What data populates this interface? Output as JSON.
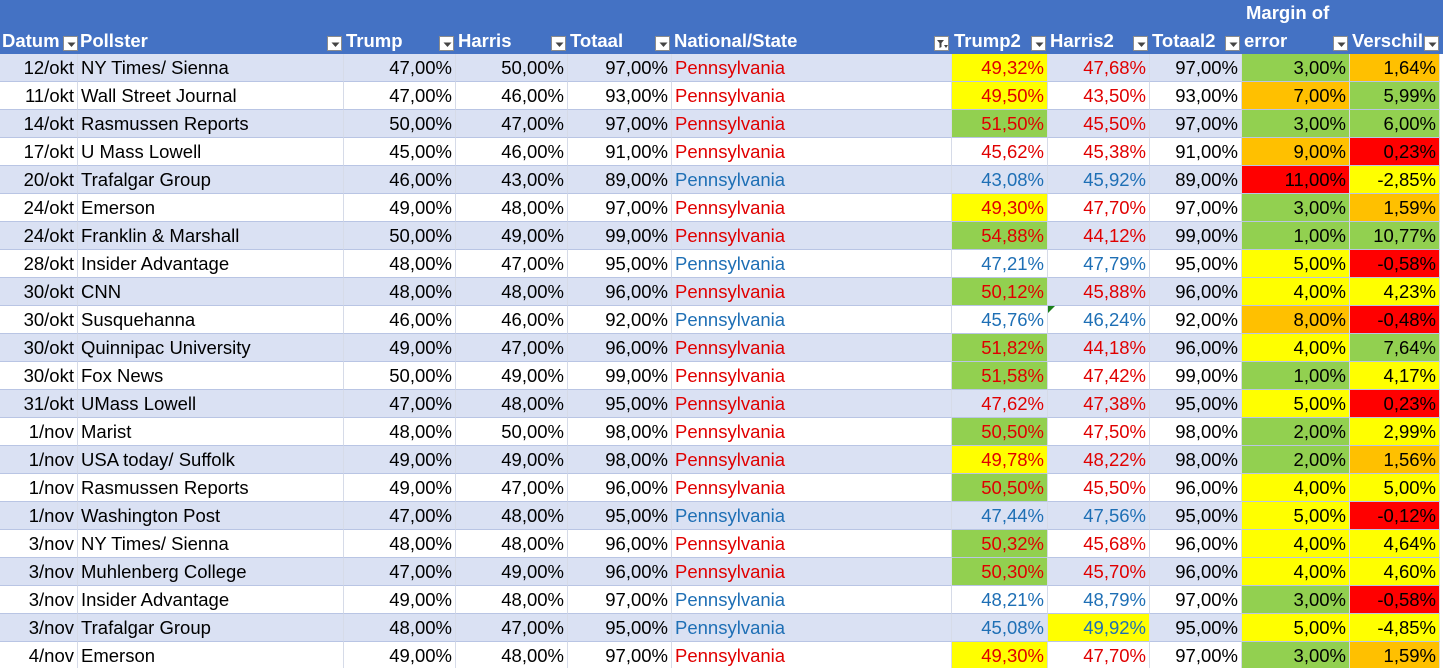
{
  "header": {
    "columns": [
      {
        "key": "datum",
        "label": "Datum"
      },
      {
        "key": "pollster",
        "label": "Pollster"
      },
      {
        "key": "trump",
        "label": "Trump"
      },
      {
        "key": "harris",
        "label": "Harris"
      },
      {
        "key": "totaal",
        "label": "Totaal"
      },
      {
        "key": "state",
        "label": "National/State"
      },
      {
        "key": "trump2",
        "label": "Trump2"
      },
      {
        "key": "harris2",
        "label": "Harris2"
      },
      {
        "key": "totaal2",
        "label": "Totaal2"
      },
      {
        "key": "moe",
        "label_line1": "Margin of",
        "label_line2": "error"
      },
      {
        "key": "verschil",
        "label": "Verschil"
      }
    ]
  },
  "colors": {
    "header_bg": "#4472c4",
    "band": "#dae1f3",
    "red_text": "#e00000",
    "blue_text": "#1e6fb5",
    "yellow": "#ffff00",
    "green": "#92d050",
    "orange": "#ffc000",
    "red": "#ff0000"
  },
  "rows": [
    {
      "datum": "12/okt",
      "pollster": "NY Times/ Sienna",
      "trump": "47,00%",
      "harris": "50,00%",
      "totaal": "97,00%",
      "state": "Pennsylvania",
      "trump2": "49,32%",
      "harris2": "47,68%",
      "totaal2": "97,00%",
      "moe": "3,00%",
      "verschil": "1,64%",
      "text": "red",
      "t2bg": "yellow",
      "h2bg": "",
      "moebg": "green",
      "vbg": "orange"
    },
    {
      "datum": "11/okt",
      "pollster": "Wall Street Journal",
      "trump": "47,00%",
      "harris": "46,00%",
      "totaal": "93,00%",
      "state": "Pennsylvania",
      "trump2": "49,50%",
      "harris2": "43,50%",
      "totaal2": "93,00%",
      "moe": "7,00%",
      "verschil": "5,99%",
      "text": "red",
      "t2bg": "yellow",
      "h2bg": "",
      "moebg": "orange",
      "vbg": "green"
    },
    {
      "datum": "14/okt",
      "pollster": "Rasmussen Reports",
      "trump": "50,00%",
      "harris": "47,00%",
      "totaal": "97,00%",
      "state": "Pennsylvania",
      "trump2": "51,50%",
      "harris2": "45,50%",
      "totaal2": "97,00%",
      "moe": "3,00%",
      "verschil": "6,00%",
      "text": "red",
      "t2bg": "green",
      "h2bg": "",
      "moebg": "green",
      "vbg": "green"
    },
    {
      "datum": "17/okt",
      "pollster": "U Mass Lowell",
      "trump": "45,00%",
      "harris": "46,00%",
      "totaal": "91,00%",
      "state": "Pennsylvania",
      "trump2": "45,62%",
      "harris2": "45,38%",
      "totaal2": "91,00%",
      "moe": "9,00%",
      "verschil": "0,23%",
      "text": "red",
      "t2bg": "",
      "h2bg": "",
      "moebg": "orange",
      "vbg": "red"
    },
    {
      "datum": "20/okt",
      "pollster": "Trafalgar Group",
      "trump": "46,00%",
      "harris": "43,00%",
      "totaal": "89,00%",
      "state": "Pennsylvania",
      "trump2": "43,08%",
      "harris2": "45,92%",
      "totaal2": "89,00%",
      "moe": "11,00%",
      "verschil": "-2,85%",
      "text": "blue",
      "t2bg": "",
      "h2bg": "",
      "moebg": "red",
      "vbg": "yellow"
    },
    {
      "datum": "24/okt",
      "pollster": "Emerson",
      "trump": "49,00%",
      "harris": "48,00%",
      "totaal": "97,00%",
      "state": "Pennsylvania",
      "trump2": "49,30%",
      "harris2": "47,70%",
      "totaal2": "97,00%",
      "moe": "3,00%",
      "verschil": "1,59%",
      "text": "red",
      "t2bg": "yellow",
      "h2bg": "",
      "moebg": "green",
      "vbg": "orange"
    },
    {
      "datum": "24/okt",
      "pollster": "Franklin & Marshall",
      "trump": "50,00%",
      "harris": "49,00%",
      "totaal": "99,00%",
      "state": "Pennsylvania",
      "trump2": "54,88%",
      "harris2": "44,12%",
      "totaal2": "99,00%",
      "moe": "1,00%",
      "verschil": "10,77%",
      "text": "red",
      "t2bg": "green",
      "h2bg": "",
      "moebg": "green",
      "vbg": "green"
    },
    {
      "datum": "28/okt",
      "pollster": "Insider Advantage",
      "trump": "48,00%",
      "harris": "47,00%",
      "totaal": "95,00%",
      "state": "Pennsylvania",
      "trump2": "47,21%",
      "harris2": "47,79%",
      "totaal2": "95,00%",
      "moe": "5,00%",
      "verschil": "-0,58%",
      "text": "blue",
      "t2bg": "",
      "h2bg": "",
      "moebg": "yellow",
      "vbg": "red"
    },
    {
      "datum": "30/okt",
      "pollster": "CNN",
      "trump": "48,00%",
      "harris": "48,00%",
      "totaal": "96,00%",
      "state": "Pennsylvania",
      "trump2": "50,12%",
      "harris2": "45,88%",
      "totaal2": "96,00%",
      "moe": "4,00%",
      "verschil": "4,23%",
      "text": "red",
      "t2bg": "green",
      "h2bg": "",
      "moebg": "yellow",
      "vbg": "yellow"
    },
    {
      "datum": "30/okt",
      "pollster": "Susquehanna",
      "trump": "46,00%",
      "harris": "46,00%",
      "totaal": "92,00%",
      "state": "Pennsylvania",
      "trump2": "45,76%",
      "harris2": "46,24%",
      "totaal2": "92,00%",
      "moe": "8,00%",
      "verschil": "-0,48%",
      "text": "blue",
      "t2bg": "",
      "h2bg": "",
      "moebg": "orange",
      "vbg": "red"
    },
    {
      "datum": "30/okt",
      "pollster": "Quinnipac University",
      "trump": "49,00%",
      "harris": "47,00%",
      "totaal": "96,00%",
      "state": "Pennsylvania",
      "trump2": "51,82%",
      "harris2": "44,18%",
      "totaal2": "96,00%",
      "moe": "4,00%",
      "verschil": "7,64%",
      "text": "red",
      "t2bg": "green",
      "h2bg": "",
      "moebg": "yellow",
      "vbg": "green"
    },
    {
      "datum": "30/okt",
      "pollster": "Fox News",
      "trump": "50,00%",
      "harris": "49,00%",
      "totaal": "99,00%",
      "state": "Pennsylvania",
      "trump2": "51,58%",
      "harris2": "47,42%",
      "totaal2": "99,00%",
      "moe": "1,00%",
      "verschil": "4,17%",
      "text": "red",
      "t2bg": "green",
      "h2bg": "",
      "moebg": "green",
      "vbg": "yellow"
    },
    {
      "datum": "31/okt",
      "pollster": "UMass Lowell",
      "trump": "47,00%",
      "harris": "48,00%",
      "totaal": "95,00%",
      "state": "Pennsylvania",
      "trump2": "47,62%",
      "harris2": "47,38%",
      "totaal2": "95,00%",
      "moe": "5,00%",
      "verschil": "0,23%",
      "text": "red",
      "t2bg": "",
      "h2bg": "",
      "moebg": "yellow",
      "vbg": "red"
    },
    {
      "datum": "1/nov",
      "pollster": "Marist",
      "trump": "48,00%",
      "harris": "50,00%",
      "totaal": "98,00%",
      "state": "Pennsylvania",
      "trump2": "50,50%",
      "harris2": "47,50%",
      "totaal2": "98,00%",
      "moe": "2,00%",
      "verschil": "2,99%",
      "text": "red",
      "t2bg": "green",
      "h2bg": "",
      "moebg": "green",
      "vbg": "yellow"
    },
    {
      "datum": "1/nov",
      "pollster": "USA today/ Suffolk",
      "trump": "49,00%",
      "harris": "49,00%",
      "totaal": "98,00%",
      "state": "Pennsylvania",
      "trump2": "49,78%",
      "harris2": "48,22%",
      "totaal2": "98,00%",
      "moe": "2,00%",
      "verschil": "1,56%",
      "text": "red",
      "t2bg": "yellow",
      "h2bg": "",
      "moebg": "green",
      "vbg": "orange"
    },
    {
      "datum": "1/nov",
      "pollster": "Rasmussen Reports",
      "trump": "49,00%",
      "harris": "47,00%",
      "totaal": "96,00%",
      "state": "Pennsylvania",
      "trump2": "50,50%",
      "harris2": "45,50%",
      "totaal2": "96,00%",
      "moe": "4,00%",
      "verschil": "5,00%",
      "text": "red",
      "t2bg": "green",
      "h2bg": "",
      "moebg": "yellow",
      "vbg": "yellow"
    },
    {
      "datum": "1/nov",
      "pollster": "Washington Post",
      "trump": "47,00%",
      "harris": "48,00%",
      "totaal": "95,00%",
      "state": "Pennsylvania",
      "trump2": "47,44%",
      "harris2": "47,56%",
      "totaal2": "95,00%",
      "moe": "5,00%",
      "verschil": "-0,12%",
      "text": "blue",
      "t2bg": "",
      "h2bg": "",
      "moebg": "yellow",
      "vbg": "red"
    },
    {
      "datum": "3/nov",
      "pollster": "NY Times/ Sienna",
      "trump": "48,00%",
      "harris": "48,00%",
      "totaal": "96,00%",
      "state": "Pennsylvania",
      "trump2": "50,32%",
      "harris2": "45,68%",
      "totaal2": "96,00%",
      "moe": "4,00%",
      "verschil": "4,64%",
      "text": "red",
      "t2bg": "green",
      "h2bg": "",
      "moebg": "yellow",
      "vbg": "yellow"
    },
    {
      "datum": "3/nov",
      "pollster": "Muhlenberg College",
      "trump": "47,00%",
      "harris": "49,00%",
      "totaal": "96,00%",
      "state": "Pennsylvania",
      "trump2": "50,30%",
      "harris2": "45,70%",
      "totaal2": "96,00%",
      "moe": "4,00%",
      "verschil": "4,60%",
      "text": "red",
      "t2bg": "green",
      "h2bg": "",
      "moebg": "yellow",
      "vbg": "yellow"
    },
    {
      "datum": "3/nov",
      "pollster": "Insider Advantage",
      "trump": "49,00%",
      "harris": "48,00%",
      "totaal": "97,00%",
      "state": "Pennsylvania",
      "trump2": "48,21%",
      "harris2": "48,79%",
      "totaal2": "97,00%",
      "moe": "3,00%",
      "verschil": "-0,58%",
      "text": "blue",
      "t2bg": "",
      "h2bg": "",
      "moebg": "green",
      "vbg": "red"
    },
    {
      "datum": "3/nov",
      "pollster": "Trafalgar Group",
      "trump": "48,00%",
      "harris": "47,00%",
      "totaal": "95,00%",
      "state": "Pennsylvania",
      "trump2": "45,08%",
      "harris2": "49,92%",
      "totaal2": "95,00%",
      "moe": "5,00%",
      "verschil": "-4,85%",
      "text": "blue",
      "t2bg": "",
      "h2bg": "yellow",
      "moebg": "yellow",
      "vbg": "yellow"
    },
    {
      "datum": "4/nov",
      "pollster": "Emerson",
      "trump": "49,00%",
      "harris": "48,00%",
      "totaal": "97,00%",
      "state": "Pennsylvania",
      "trump2": "49,30%",
      "harris2": "47,70%",
      "totaal2": "97,00%",
      "moe": "3,00%",
      "verschil": "1,59%",
      "text": "red",
      "t2bg": "yellow",
      "h2bg": "",
      "moebg": "green",
      "vbg": "orange"
    }
  ]
}
